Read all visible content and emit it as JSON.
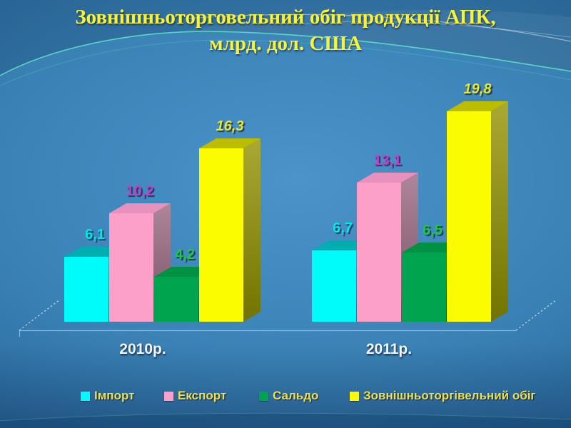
{
  "slide": {
    "title_line1": "Зовнішньоторговельний обіг продукції АПК,",
    "title_line2": "млрд. дол. США"
  },
  "chart_data": {
    "type": "bar",
    "variant": "3d-clustered",
    "title": "Зовнішньоторговельний обіг продукції АПК, млрд. дол. США",
    "categories": [
      "2010р.",
      "2011р."
    ],
    "series": [
      {
        "key": "import",
        "name": "Імпорт",
        "values": [
          6.1,
          6.7
        ],
        "labels": [
          "6,1",
          "6,7"
        ],
        "label_color": "#00E8E8",
        "label_italic": false,
        "colors": {
          "front": "#00FBFB",
          "top": "#00AEB2",
          "side": "#00A0A8"
        }
      },
      {
        "key": "export",
        "name": "Експорт",
        "values": [
          10.2,
          13.1
        ],
        "labels": [
          "10,2",
          "13,1"
        ],
        "label_color": "#C53DC5",
        "label_italic": false,
        "colors": {
          "front": "#FC9FC9",
          "top": "#E891BC",
          "side": "#9A6881"
        }
      },
      {
        "key": "balance",
        "name": "Сальдо",
        "values": [
          4.2,
          6.5
        ],
        "labels": [
          "4,2",
          "6,5"
        ],
        "label_color": "#1FC93F",
        "label_italic": false,
        "colors": {
          "front": "#00A44F",
          "top": "#009142",
          "side": "#007A3C"
        }
      },
      {
        "key": "turnover",
        "name": "Зовнішньоторгівельний обіг",
        "values": [
          16.3,
          19.8
        ],
        "labels": [
          "16,3",
          "19,8"
        ],
        "label_color": "#E6E62A",
        "label_italic": true,
        "colors": {
          "front": "#FCFC00",
          "top": "#BCBC00",
          "side": "#939300"
        }
      }
    ],
    "ylim": [
      0,
      20
    ],
    "value_format": "decimal-comma",
    "gridlines": false,
    "legend_position": "bottom"
  }
}
